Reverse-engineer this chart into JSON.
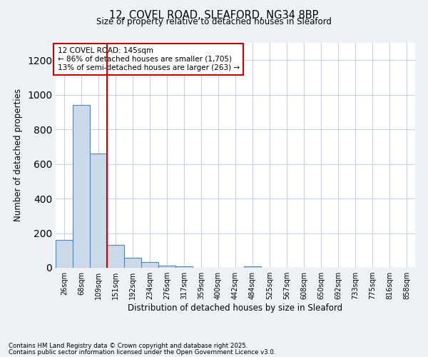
{
  "title1": "12, COVEL ROAD, SLEAFORD, NG34 8BP",
  "title2": "Size of property relative to detached houses in Sleaford",
  "xlabel": "Distribution of detached houses by size in Sleaford",
  "ylabel": "Number of detached properties",
  "bar_labels": [
    "26sqm",
    "68sqm",
    "109sqm",
    "151sqm",
    "192sqm",
    "234sqm",
    "276sqm",
    "317sqm",
    "359sqm",
    "400sqm",
    "442sqm",
    "484sqm",
    "525sqm",
    "567sqm",
    "608sqm",
    "650sqm",
    "692sqm",
    "733sqm",
    "775sqm",
    "816sqm",
    "858sqm"
  ],
  "bar_values": [
    163,
    940,
    660,
    132,
    57,
    32,
    13,
    8,
    0,
    0,
    0,
    10,
    0,
    0,
    0,
    0,
    0,
    0,
    0,
    0,
    0
  ],
  "bar_color": "#ccd9e8",
  "bar_edge_color": "#5585b5",
  "ylim": [
    0,
    1300
  ],
  "yticks": [
    0,
    200,
    400,
    600,
    800,
    1000,
    1200
  ],
  "vline_pos": 2.5,
  "vline_color": "#cc0000",
  "annotation_text": "12 COVEL ROAD: 145sqm\n← 86% of detached houses are smaller (1,705)\n13% of semi-detached houses are larger (263) →",
  "annotation_box_color": "#cc0000",
  "annotation_fill": "#ffffff",
  "footer1": "Contains HM Land Registry data © Crown copyright and database right 2025.",
  "footer2": "Contains public sector information licensed under the Open Government Licence v3.0.",
  "background_color": "#eef2f7",
  "plot_bg_color": "#ffffff",
  "grid_color": "#c8d4e0"
}
